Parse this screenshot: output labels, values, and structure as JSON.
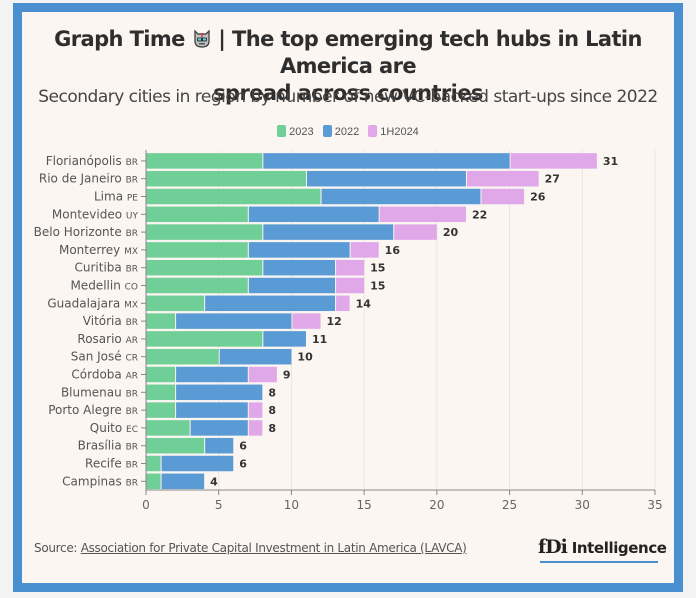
{
  "header": {
    "title_prefix": "Graph Time",
    "title_icon": "robot-icon",
    "title_main": "| The top emerging tech hubs in Latin America are",
    "title_line2": "spread across countries",
    "subtitle": "Secondary cities in region by number of new VC-backed start-ups since 2022"
  },
  "footer": {
    "source_prefix": "Source: ",
    "source_link": "Association for Private Capital Investment in Latin America (LAVCA)",
    "logo_mark": "fDi",
    "logo_text": "Intelligence"
  },
  "colors": {
    "2023": "#6fcf97",
    "2022": "#5b9bd5",
    "1H2024": "#e0a8e8",
    "frame": "#4a8fd0",
    "panel": "#fcf6f2"
  },
  "chart_data": {
    "type": "bar",
    "orientation": "horizontal",
    "stacked": true,
    "title": "The top emerging tech hubs in Latin America are spread across countries",
    "subtitle": "Secondary cities in region by number of new VC-backed start-ups since 2022",
    "xlabel": "",
    "ylabel": "",
    "xlim": [
      0,
      35
    ],
    "xticks": [
      0,
      5,
      10,
      15,
      20,
      25,
      30,
      35
    ],
    "grid": true,
    "legend_position": "top-center",
    "categories": [
      {
        "city": "Florianópolis",
        "country": "BR"
      },
      {
        "city": "Rio de Janeiro",
        "country": "BR"
      },
      {
        "city": "Lima",
        "country": "PE"
      },
      {
        "city": "Montevideo",
        "country": "UY"
      },
      {
        "city": "Belo Horizonte",
        "country": "BR"
      },
      {
        "city": "Monterrey",
        "country": "MX"
      },
      {
        "city": "Curitiba",
        "country": "BR"
      },
      {
        "city": "Medellin",
        "country": "CO"
      },
      {
        "city": "Guadalajara",
        "country": "MX"
      },
      {
        "city": "Vitória",
        "country": "BR"
      },
      {
        "city": "Rosario",
        "country": "AR"
      },
      {
        "city": "San José",
        "country": "CR"
      },
      {
        "city": "Córdoba",
        "country": "AR"
      },
      {
        "city": "Blumenau",
        "country": "BR"
      },
      {
        "city": "Porto Alegre",
        "country": "BR"
      },
      {
        "city": "Quito",
        "country": "EC"
      },
      {
        "city": "Brasília",
        "country": "BR"
      },
      {
        "city": "Recife",
        "country": "BR"
      },
      {
        "city": "Campinas",
        "country": "BR"
      }
    ],
    "series": [
      {
        "name": "2023",
        "values": [
          8,
          11,
          12,
          7,
          8,
          7,
          8,
          7,
          4,
          2,
          8,
          5,
          2,
          2,
          2,
          3,
          4,
          1,
          1
        ]
      },
      {
        "name": "2022",
        "values": [
          17,
          11,
          11,
          9,
          9,
          7,
          5,
          6,
          9,
          8,
          3,
          5,
          5,
          6,
          5,
          4,
          2,
          5,
          3
        ]
      },
      {
        "name": "1H2024",
        "values": [
          6,
          5,
          3,
          6,
          3,
          2,
          2,
          2,
          1,
          2,
          0,
          0,
          2,
          0,
          1,
          1,
          0,
          0,
          0
        ]
      }
    ],
    "totals": [
      31,
      27,
      26,
      22,
      20,
      16,
      15,
      15,
      14,
      12,
      11,
      10,
      9,
      8,
      8,
      8,
      6,
      6,
      4
    ]
  }
}
